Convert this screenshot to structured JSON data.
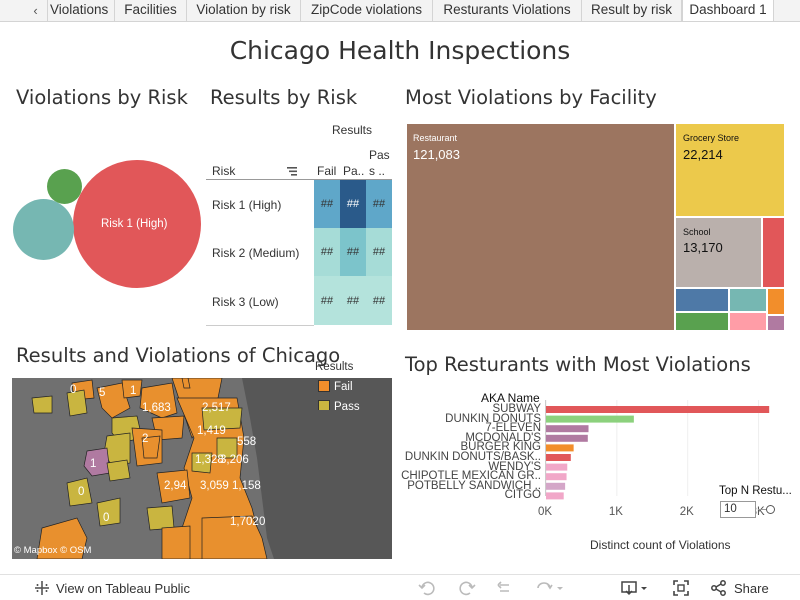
{
  "tabs": {
    "nav_prev": "‹",
    "items": [
      {
        "label": "Violations"
      },
      {
        "label": "Facilities"
      },
      {
        "label": "Violation by risk"
      },
      {
        "label": "ZipCode violations"
      },
      {
        "label": "Resturants Violations"
      },
      {
        "label": "Result by risk"
      },
      {
        "label": "Dashboard 1"
      }
    ],
    "active_index": 6
  },
  "dashboard_title": "Chicago Health Inspections",
  "violations_by_risk": {
    "title": "Violations by Risk",
    "bubble_label": "Risk 1 (High)",
    "colors": {
      "high": "#e15759",
      "medium": "#76b7b2",
      "low": "#59a14f"
    }
  },
  "results_by_risk": {
    "title": "Results by Risk",
    "column_group": "Results",
    "row_header": "Risk",
    "columns": [
      "Fail",
      "Pa..",
      "Pas s .."
    ],
    "rows": [
      {
        "label": "Risk 1 (High)",
        "cells": [
          "##",
          "##",
          "##"
        ]
      },
      {
        "label": "Risk 2 (Medium)",
        "cells": [
          "##",
          "##",
          "##"
        ]
      },
      {
        "label": "Risk 3 (Low)",
        "cells": [
          "##",
          "##",
          "##"
        ]
      }
    ]
  },
  "most_violations_by_facility": {
    "title": "Most Violations by Facility",
    "items": [
      {
        "label": "Restaurant",
        "value": "121,083",
        "color": "#9c7560"
      },
      {
        "label": "Grocery Store",
        "value": "22,214",
        "color": "#ecc94b"
      },
      {
        "label": "School",
        "value": "13,170",
        "color": "#bab0ac"
      }
    ]
  },
  "map": {
    "title": "Results and Violations of Chicago",
    "legend_title": "Results",
    "legend_items": [
      {
        "label": "Fail",
        "color": "#f28e2b"
      },
      {
        "label": "Pass",
        "color": "#c9b540"
      }
    ],
    "labels": [
      "0",
      "5",
      "1",
      "1,683",
      "2,517",
      "1,419",
      "558",
      "2",
      "1",
      "1,328",
      "3,206",
      "2,94",
      "3,059",
      "1,158",
      "0",
      "0",
      "1,702",
      "0"
    ],
    "attribution": "© Mapbox  © OSM"
  },
  "top_restaurants": {
    "title": "Top Resturants with Most Violations",
    "header": "AKA Name",
    "xlabel": "Distinct count of Violations",
    "ticks": [
      "0K",
      "1K",
      "2K",
      "3K"
    ],
    "top_n_label": "Top N Restu...",
    "top_n_value": "10"
  },
  "chart_data": {
    "type": "bar",
    "title": "Top Resturants with Most Violations",
    "categories": [
      "SUBWAY",
      "DUNKIN DONUTS",
      "7-ELEVEN",
      "MCDONALD'S",
      "BURGER KING",
      "DUNKIN DONUTS/BASK..",
      "WENDY'S",
      "CHIPOTLE MEXICAN GR..",
      "POTBELLY SANDWICH ..",
      "CITGO"
    ],
    "values": [
      3150,
      1240,
      600,
      590,
      390,
      350,
      300,
      290,
      270,
      250
    ],
    "colors": [
      "#e15759",
      "#8cd17d",
      "#b07aa1",
      "#b07aa1",
      "#f28e2b",
      "#e15759",
      "#f1a7c8",
      "#f1a7c8",
      "#d4a6c8",
      "#f1a7c8"
    ],
    "xlabel": "Distinct count of Violations",
    "ylabel": "AKA Name",
    "xlim": [
      0,
      3500
    ]
  },
  "toolbar": {
    "view_on": "View on Tableau Public",
    "share": "Share"
  }
}
